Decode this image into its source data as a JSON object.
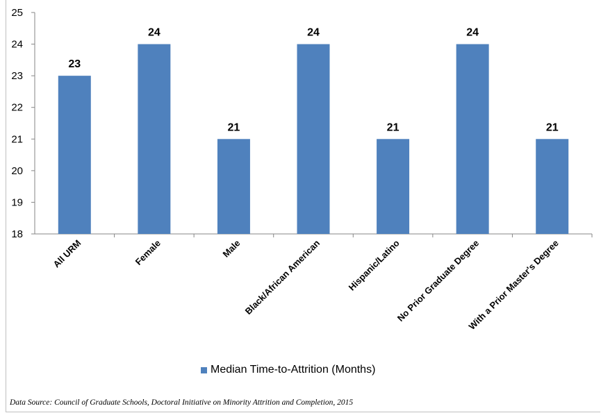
{
  "chart_data": {
    "type": "bar",
    "categories": [
      "All URM",
      "Female",
      "Male",
      "Black/African American",
      "Hispanic/Latino",
      "No Prior Graduate Degree",
      "With a Prior Master's Degree"
    ],
    "series": [
      {
        "name": "Median Time-to-Attrition (Months)",
        "values": [
          23,
          24,
          21,
          24,
          21,
          24,
          21
        ]
      }
    ],
    "ylim": [
      18,
      25
    ],
    "yticks": [
      18,
      19,
      20,
      21,
      22,
      23,
      24,
      25
    ],
    "grid": false,
    "legend": "bottom",
    "bar_color": "#4f81bd",
    "data_labels": true
  },
  "source_note": "Data Source:  Council of Graduate Schools, Doctoral Initiative on Minority Attrition and Completion, 2015"
}
